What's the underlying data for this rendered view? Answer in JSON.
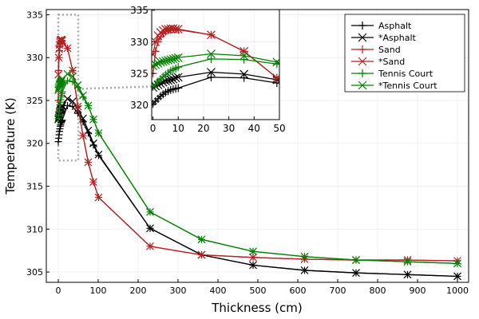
{
  "chart_data": {
    "type": "line",
    "xlabel": "Thickness (cm)",
    "ylabel": "Temperature (K)",
    "xlim": [
      -30,
      1028
    ],
    "ylim": [
      303.8,
      335.6
    ],
    "xticks": [
      0,
      100,
      200,
      300,
      400,
      500,
      600,
      700,
      800,
      900,
      1000
    ],
    "yticks": [
      305,
      310,
      315,
      320,
      325,
      330,
      335
    ],
    "grid": true,
    "legend_position": "top-right",
    "inset": {
      "xlim": [
        -0.5,
        50
      ],
      "ylim": [
        317.7,
        335.1
      ],
      "xticks": [
        0,
        10,
        20,
        30,
        40,
        50
      ],
      "yticks": [
        320,
        325,
        330,
        335
      ],
      "zoom_box": {
        "x": [
          0,
          50
        ],
        "y": [
          318,
          335
        ]
      }
    },
    "x": [
      0,
      1,
      2,
      3,
      4,
      5,
      6,
      7,
      8,
      9,
      10,
      23,
      36,
      49,
      62,
      75,
      88,
      101,
      230,
      359,
      488,
      617,
      746,
      875,
      1000
    ],
    "series": [
      {
        "name": "Asphalt",
        "marker": "+",
        "color": "#000000",
        "values": [
          320.2,
          320.6,
          321.0,
          321.4,
          321.7,
          322.0,
          322.2,
          322.4,
          322.5,
          322.6,
          322.7,
          324.4,
          324.3,
          323.5,
          322.5,
          321.2,
          319.8,
          318.6,
          310.1,
          307.0,
          305.8,
          305.2,
          304.9,
          304.7,
          304.5
        ]
      },
      {
        "name": "*Asphalt",
        "marker": "x",
        "color": "#000000",
        "values": [
          322.8,
          323.0,
          323.2,
          323.4,
          323.6,
          323.8,
          323.9,
          324.0,
          324.1,
          324.3,
          324.4,
          325.2,
          324.9,
          324.0,
          322.9,
          321.5,
          320.0,
          318.7,
          310.1,
          307.0,
          305.8,
          305.2,
          304.9,
          304.7,
          304.5
        ]
      },
      {
        "name": "Sand",
        "marker": "+",
        "color": "#b22222",
        "values": [
          325.0,
          328.5,
          330.0,
          330.8,
          331.3,
          331.6,
          331.8,
          331.9,
          332.0,
          332.0,
          331.9,
          331.1,
          328.5,
          324.3,
          320.9,
          317.8,
          315.5,
          313.7,
          308.0,
          307.0,
          306.7,
          306.5,
          306.4,
          306.4,
          306.3
        ]
      },
      {
        "name": "*Sand",
        "marker": "x",
        "color": "#b22222",
        "values": [
          328.0,
          330.0,
          331.0,
          331.5,
          331.8,
          332.0,
          332.0,
          332.1,
          332.1,
          332.0,
          332.0,
          331.1,
          328.5,
          324.3,
          320.9,
          317.8,
          315.5,
          313.7,
          308.0,
          307.0,
          306.7,
          306.5,
          306.4,
          306.4,
          306.3
        ]
      },
      {
        "name": "Tennis Court",
        "marker": "+",
        "color": "#008000",
        "values": [
          322.9,
          323.3,
          323.7,
          324.1,
          324.5,
          324.8,
          325.1,
          325.4,
          325.6,
          325.8,
          326.0,
          327.3,
          327.2,
          326.5,
          325.4,
          324.4,
          322.8,
          321.2,
          312.0,
          308.8,
          307.4,
          306.8,
          306.4,
          306.2,
          306.0
        ]
      },
      {
        "name": "*Tennis Court",
        "marker": "x",
        "color": "#008000",
        "values": [
          326.2,
          326.4,
          326.6,
          326.8,
          326.9,
          327.0,
          327.1,
          327.2,
          327.3,
          327.4,
          327.5,
          328.1,
          327.8,
          326.8,
          325.6,
          324.4,
          322.8,
          321.2,
          312.0,
          308.8,
          307.4,
          306.8,
          306.4,
          306.2,
          306.0
        ]
      }
    ]
  }
}
